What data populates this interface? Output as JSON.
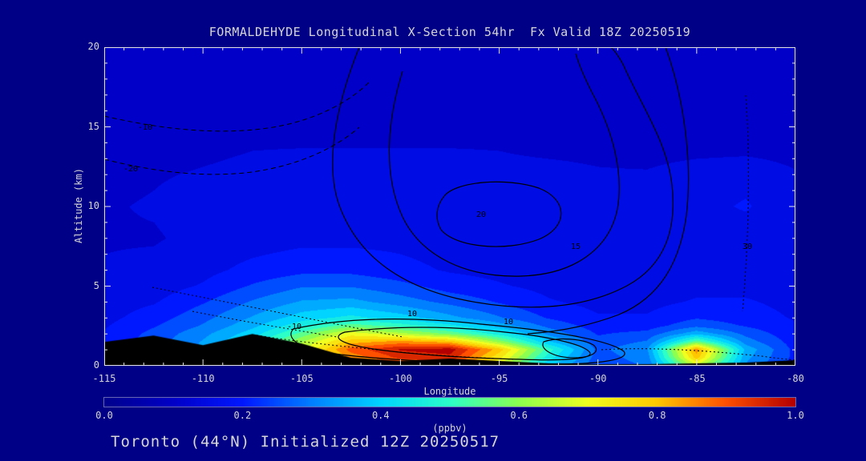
{
  "page": {
    "background": "#000087",
    "text_color": "#d6d6d6",
    "axis_color": "#e6e6e6"
  },
  "header": {
    "title": "FORMALDEHYDE Longitudinal X-Section 54hr  Fx Valid 18Z 20250519"
  },
  "footer": {
    "caption": "Toronto (44°N) Initialized 12Z 20250517"
  },
  "axes": {
    "x": {
      "label": "Longitude",
      "ticks": [
        "-115",
        "-110",
        "-105",
        "-100",
        "-95",
        "-90",
        "-85",
        "-80"
      ],
      "min": -115,
      "max": -80
    },
    "y": {
      "label": "Altitude (km)",
      "ticks": [
        "0",
        "5",
        "10",
        "15",
        "20"
      ],
      "min": 0,
      "max": 20
    }
  },
  "colorbar": {
    "label": "(ppbv)",
    "ticks": [
      "0.0",
      "0.2",
      "0.4",
      "0.6",
      "0.8",
      "1.0"
    ],
    "min": 0.0,
    "max": 1.0
  },
  "chart_data": {
    "type": "heatmap",
    "title": "FORMALDEHYDE Longitudinal X-Section 54hr  Fx Valid 18Z 20250519",
    "subtitle": "Toronto (44°N) Initialized 12Z 20250517",
    "xlabel": "Longitude",
    "ylabel": "Altitude (km)",
    "units": "ppbv",
    "xlim": [
      -115,
      -80
    ],
    "ylim": [
      0,
      20
    ],
    "value_range": [
      0.0,
      1.0
    ],
    "quantize_step": 0.05,
    "lons": [
      -115,
      -112.5,
      -110,
      -107.5,
      -105,
      -102.5,
      -100,
      -97.5,
      -95,
      -92.5,
      -90,
      -87.5,
      -85,
      -82.5,
      -80
    ],
    "alts_top_down": [
      20,
      18,
      16,
      14,
      12,
      10,
      8,
      6,
      5,
      4,
      3,
      2.5,
      2,
      1.5,
      1,
      0.5,
      0
    ],
    "values_ppbv": [
      [
        0.08,
        0.08,
        0.09,
        0.09,
        0.1,
        0.1,
        0.1,
        0.1,
        0.1,
        0.1,
        0.09,
        0.09,
        0.09,
        0.08,
        0.08
      ],
      [
        0.09,
        0.09,
        0.1,
        0.1,
        0.1,
        0.11,
        0.11,
        0.11,
        0.1,
        0.1,
        0.1,
        0.09,
        0.09,
        0.09,
        0.09
      ],
      [
        0.09,
        0.1,
        0.1,
        0.11,
        0.11,
        0.12,
        0.12,
        0.11,
        0.11,
        0.11,
        0.1,
        0.1,
        0.1,
        0.09,
        0.09
      ],
      [
        0.1,
        0.1,
        0.11,
        0.12,
        0.12,
        0.12,
        0.12,
        0.12,
        0.12,
        0.11,
        0.11,
        0.1,
        0.1,
        0.1,
        0.1
      ],
      [
        0.11,
        0.12,
        0.13,
        0.14,
        0.15,
        0.15,
        0.15,
        0.15,
        0.14,
        0.14,
        0.13,
        0.13,
        0.15,
        0.16,
        0.13
      ],
      [
        0.12,
        0.13,
        0.15,
        0.16,
        0.16,
        0.17,
        0.17,
        0.16,
        0.15,
        0.15,
        0.14,
        0.14,
        0.16,
        0.18,
        0.14
      ],
      [
        0.12,
        0.12,
        0.14,
        0.15,
        0.16,
        0.16,
        0.16,
        0.15,
        0.14,
        0.14,
        0.13,
        0.13,
        0.14,
        0.15,
        0.13
      ],
      [
        0.13,
        0.14,
        0.16,
        0.19,
        0.21,
        0.21,
        0.19,
        0.17,
        0.16,
        0.14,
        0.13,
        0.14,
        0.15,
        0.15,
        0.14
      ],
      [
        0.14,
        0.15,
        0.18,
        0.23,
        0.27,
        0.27,
        0.24,
        0.2,
        0.18,
        0.16,
        0.14,
        0.15,
        0.16,
        0.16,
        0.15
      ],
      [
        0.15,
        0.17,
        0.22,
        0.28,
        0.33,
        0.34,
        0.3,
        0.26,
        0.22,
        0.18,
        0.16,
        0.16,
        0.18,
        0.18,
        0.16
      ],
      [
        0.16,
        0.2,
        0.26,
        0.33,
        0.4,
        0.44,
        0.4,
        0.34,
        0.28,
        0.22,
        0.18,
        0.18,
        0.22,
        0.2,
        0.17
      ],
      [
        0.17,
        0.22,
        0.28,
        0.36,
        0.46,
        0.55,
        0.5,
        0.44,
        0.35,
        0.26,
        0.2,
        0.2,
        0.26,
        0.22,
        0.18
      ],
      [
        0.18,
        0.24,
        0.31,
        0.4,
        0.54,
        0.7,
        0.64,
        0.56,
        0.45,
        0.31,
        0.22,
        0.24,
        0.36,
        0.26,
        0.19
      ],
      [
        0.19,
        0.25,
        0.33,
        0.44,
        0.62,
        0.8,
        0.84,
        0.8,
        0.6,
        0.38,
        0.24,
        0.28,
        0.55,
        0.3,
        0.2
      ],
      [
        0.2,
        0.26,
        0.34,
        0.46,
        0.66,
        0.9,
        0.98,
        1.0,
        0.8,
        0.5,
        0.26,
        0.32,
        0.85,
        0.36,
        0.21
      ],
      [
        0.2,
        0.26,
        0.34,
        0.45,
        0.62,
        0.84,
        0.94,
        0.96,
        0.74,
        0.45,
        0.25,
        0.3,
        0.8,
        0.34,
        0.21
      ],
      [
        0.2,
        0.25,
        0.32,
        0.42,
        0.56,
        0.75,
        0.86,
        0.9,
        0.66,
        0.38,
        0.24,
        0.28,
        0.66,
        0.32,
        0.2
      ]
    ],
    "terrain_km": [
      1.5,
      1.9,
      1.3,
      2.0,
      1.4,
      0.5,
      0.3,
      0.45,
      0.3,
      0.15,
      0.1,
      0.1,
      0.15,
      0.2,
      0.35
    ],
    "terrain_color": "#000000",
    "colormap_stops": [
      {
        "t": 0.0,
        "c": "#00008D"
      },
      {
        "t": 0.1,
        "c": "#0000C8"
      },
      {
        "t": 0.2,
        "c": "#0018FF"
      },
      {
        "t": 0.3,
        "c": "#0080FF"
      },
      {
        "t": 0.4,
        "c": "#00D4FF"
      },
      {
        "t": 0.5,
        "c": "#2CFFC8"
      },
      {
        "t": 0.6,
        "c": "#8CFF50"
      },
      {
        "t": 0.7,
        "c": "#F0FF20"
      },
      {
        "t": 0.8,
        "c": "#FFC800"
      },
      {
        "t": 0.9,
        "c": "#FF5000"
      },
      {
        "t": 1.0,
        "c": "#B40000"
      }
    ],
    "contour_labels": [
      "-10",
      "-20",
      "-10",
      "10",
      "10",
      "15",
      "20",
      "30"
    ]
  }
}
